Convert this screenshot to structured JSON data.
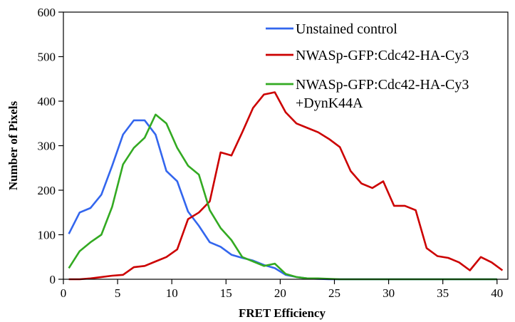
{
  "chart_data": {
    "type": "line",
    "title": "",
    "xlabel": "FRET Efficiency",
    "ylabel": "Number of Pixels",
    "xlim": [
      0,
      41
    ],
    "ylim": [
      0,
      600
    ],
    "xticks": [
      0,
      5,
      10,
      15,
      20,
      25,
      30,
      35,
      40
    ],
    "yticks": [
      0,
      100,
      200,
      300,
      400,
      500,
      600
    ],
    "grid": false,
    "legend_position": "top-right",
    "series": [
      {
        "name": "Unstained control",
        "color": "#3366ee",
        "x": [
          0.5,
          1.5,
          2.5,
          3.5,
          4.5,
          5.5,
          6.5,
          7.5,
          8.5,
          9.5,
          10.5,
          11.5,
          12.5,
          13.5,
          14.5,
          15.5,
          16.5,
          17.5,
          18.5,
          19.5,
          20.5,
          21.5,
          22.5,
          23.5,
          24.5,
          25.5,
          30,
          35,
          40
        ],
        "values": [
          102,
          150,
          160,
          190,
          255,
          325,
          357,
          357,
          325,
          243,
          220,
          152,
          120,
          83,
          73,
          55,
          48,
          42,
          32,
          25,
          10,
          5,
          2,
          1,
          0,
          0,
          0,
          0,
          0
        ]
      },
      {
        "name": "NWASp-GFP:Cdc42-HA-Cy3",
        "color": "#cc0000",
        "x": [
          0.5,
          1.5,
          2.5,
          3.5,
          4.5,
          5.5,
          6.5,
          7.5,
          8.5,
          9.5,
          10.5,
          11.5,
          12.5,
          13.5,
          14.5,
          15.5,
          16.5,
          17.5,
          18.5,
          19.5,
          20.5,
          21.5,
          22.5,
          23.5,
          24.5,
          25.5,
          26.5,
          27.5,
          28.5,
          29.5,
          30.5,
          31.5,
          32.5,
          33.5,
          34.5,
          35.5,
          36.5,
          37.5,
          38.5,
          39.5,
          40.5
        ],
        "values": [
          0,
          0,
          2,
          5,
          8,
          10,
          27,
          30,
          40,
          50,
          67,
          135,
          150,
          175,
          285,
          278,
          330,
          385,
          415,
          420,
          375,
          350,
          340,
          330,
          315,
          297,
          243,
          215,
          205,
          220,
          165,
          165,
          155,
          70,
          52,
          48,
          38,
          20,
          50,
          38,
          20
        ]
      },
      {
        "name": "NWASp-GFP:Cdc42-HA-Cy3\n+DynK44A",
        "color": "#33aa22",
        "x": [
          0.5,
          1.5,
          2.5,
          3.5,
          4.5,
          5.5,
          6.5,
          7.5,
          8.5,
          9.5,
          10.5,
          11.5,
          12.5,
          13.5,
          14.5,
          15.5,
          16.5,
          17.5,
          18.5,
          19.5,
          20.5,
          21.5,
          22.5,
          23.5,
          24.5,
          25.5,
          30,
          35,
          40
        ],
        "values": [
          25,
          63,
          83,
          100,
          163,
          258,
          295,
          318,
          370,
          350,
          295,
          255,
          235,
          155,
          115,
          88,
          50,
          40,
          30,
          35,
          12,
          5,
          2,
          2,
          1,
          0,
          0,
          0,
          0
        ]
      }
    ]
  }
}
